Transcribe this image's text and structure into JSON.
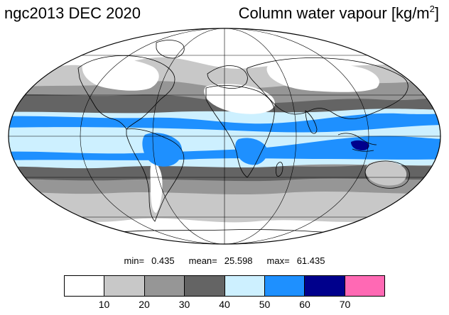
{
  "header": {
    "dataset_title": "ngc2013 DEC 2020",
    "variable_title": "Column water vapour [kg/m",
    "variable_exponent": "2",
    "variable_close": "]"
  },
  "stats": {
    "min_label": "min=",
    "min_value": "0.435",
    "mean_label": "mean=",
    "mean_value": "25.598",
    "max_label": "max=",
    "max_value": "61.435"
  },
  "legend": {
    "colors": [
      "#ffffff",
      "#c8c8c8",
      "#969696",
      "#646464",
      "#cdf0ff",
      "#1e90ff",
      "#00008c",
      "#ff69b4"
    ],
    "tick_labels": [
      "10",
      "20",
      "30",
      "40",
      "50",
      "60",
      "70"
    ]
  },
  "map_colors": {
    "band_0_10": "#ffffff",
    "band_10_20": "#c8c8c8",
    "band_20_30": "#969696",
    "band_30_40": "#646464",
    "band_40_50": "#cdf0ff",
    "band_50_60": "#1e90ff",
    "band_60_70": "#00008c",
    "coastline": "#000000",
    "grid": "#000000"
  }
}
